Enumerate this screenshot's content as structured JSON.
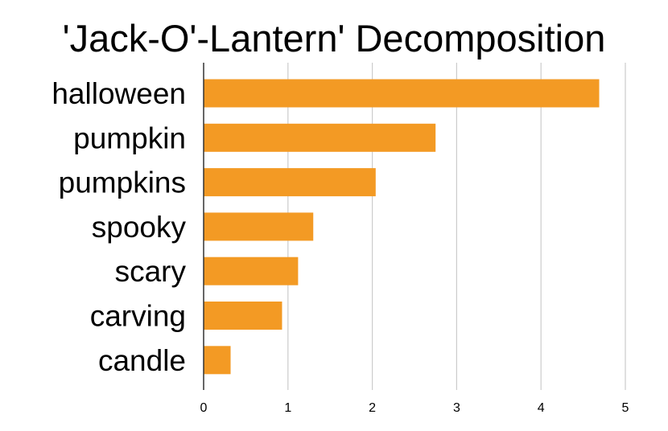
{
  "chart_data": {
    "type": "bar",
    "orientation": "horizontal",
    "title": "'Jack-O'-Lantern' Decomposition",
    "xlabel": "",
    "ylabel": "",
    "categories": [
      "halloween",
      "pumpkin",
      "pumpkins",
      "spooky",
      "scary",
      "carving",
      "candle"
    ],
    "values": [
      4.69,
      2.75,
      2.04,
      1.3,
      1.12,
      0.93,
      0.32
    ],
    "xlim": [
      0,
      5
    ],
    "xticks": [
      0,
      1,
      2,
      3,
      4,
      5
    ],
    "grid": "vertical",
    "legend": "none",
    "bar_color": "#f39a24",
    "grid_color": "#cccccc",
    "axis_color": "#333333"
  }
}
